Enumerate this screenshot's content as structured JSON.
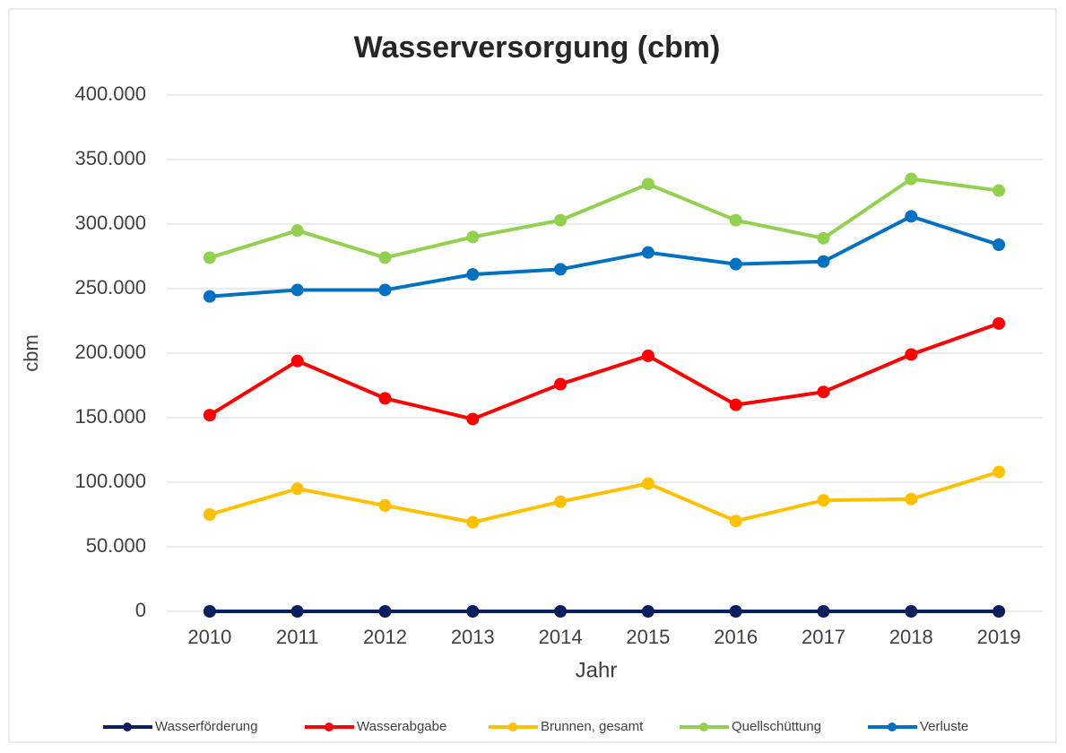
{
  "chart_data": {
    "type": "line",
    "title": "Wasserversorgung (cbm)",
    "x_label": "Jahr",
    "y_label": "cbm",
    "categories": [
      "2010",
      "2011",
      "2012",
      "2013",
      "2014",
      "2015",
      "2016",
      "2017",
      "2018",
      "2019"
    ],
    "series": [
      {
        "name": "Wasserförderung",
        "color": "#0b1f5e",
        "values": [
          0,
          0,
          0,
          0,
          0,
          0,
          0,
          0,
          0,
          0
        ]
      },
      {
        "name": "Wasserabgabe",
        "color": "#ff0000",
        "values": [
          152000,
          194000,
          165000,
          149000,
          176000,
          198000,
          160000,
          170000,
          199000,
          223000
        ]
      },
      {
        "name": "Brunnen, gesamt",
        "color": "#ffc000",
        "values": [
          75000,
          95000,
          82000,
          69000,
          85000,
          99000,
          70000,
          86000,
          87000,
          108000
        ]
      },
      {
        "name": "Quellschüttung",
        "color": "#92d050",
        "values": [
          274000,
          295000,
          274000,
          290000,
          303000,
          331000,
          303000,
          289000,
          335000,
          326000
        ]
      },
      {
        "name": "Verluste",
        "color": "#0070c0",
        "values": [
          244000,
          249000,
          249000,
          261000,
          265000,
          278000,
          269000,
          271000,
          306000,
          284000
        ]
      }
    ],
    "ylim": [
      0,
      400000
    ],
    "yticks": [
      0,
      {
        "value": 50000,
        "label": "50.000"
      },
      {
        "value": 100000,
        "label": "100.000"
      },
      {
        "value": 150000,
        "label": "150.000"
      },
      {
        "value": 200000,
        "label": "200.000"
      },
      {
        "value": 250000,
        "label": "250.000"
      },
      {
        "value": 300000,
        "label": "300.000"
      },
      {
        "value": 350000,
        "label": "350.000"
      },
      {
        "value": 400000,
        "label": "400.000"
      }
    ],
    "grid": true,
    "legend": "bottom"
  }
}
